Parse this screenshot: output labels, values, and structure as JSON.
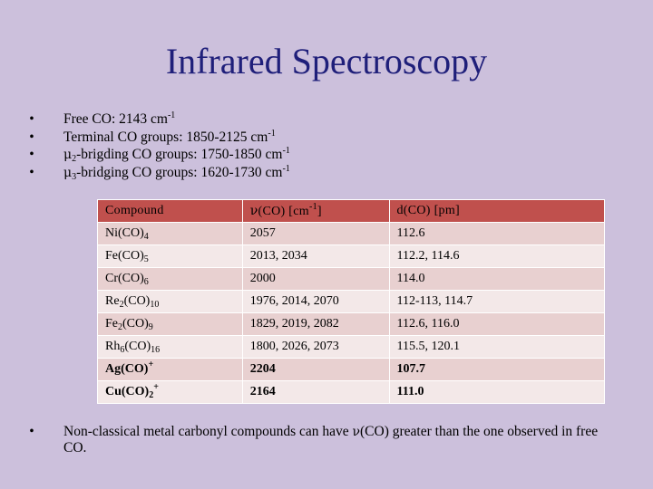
{
  "title": "Infrared Spectroscopy",
  "bullets": [
    {
      "pre": "",
      "greek": "",
      "sub": "",
      "text": "Free CO: 2143 cm",
      "sup": "-1"
    },
    {
      "pre": "",
      "greek": "",
      "sub": "",
      "text": "Terminal CO groups: 1850-2125 cm",
      "sup": "-1"
    },
    {
      "pre": "",
      "greek": "μ",
      "sub": "2",
      "text": "-brigding CO groups: 1750-1850 cm",
      "sup": "-1"
    },
    {
      "pre": "",
      "greek": "μ",
      "sub": "3",
      "text": "-bridging CO groups: 1620-1730 cm",
      "sup": "-1"
    }
  ],
  "table": {
    "headers": {
      "compound": "Compound",
      "nu_symbol": "ν",
      "nu_text": "(CO) [cm",
      "nu_sup": "-1",
      "nu_close": "]",
      "distance": "d(CO) [pm]"
    },
    "rows": [
      {
        "parts": [
          [
            "Ni(CO)",
            ""
          ],
          [
            "4",
            "sub"
          ]
        ],
        "nu": "2057",
        "d": "112.6",
        "bold": false
      },
      {
        "parts": [
          [
            "Fe(CO)",
            ""
          ],
          [
            "5",
            "sub"
          ]
        ],
        "nu": "2013, 2034",
        "d": "112.2, 114.6",
        "bold": false
      },
      {
        "parts": [
          [
            "Cr(CO)",
            ""
          ],
          [
            "6",
            "sub"
          ]
        ],
        "nu": "2000",
        "d": "114.0",
        "bold": false
      },
      {
        "parts": [
          [
            "Re",
            ""
          ],
          [
            "2",
            "sub"
          ],
          [
            "(CO)",
            ""
          ],
          [
            "10",
            "sub"
          ]
        ],
        "nu": "1976, 2014, 2070",
        "d": "112-113, 114.7",
        "bold": false
      },
      {
        "parts": [
          [
            "Fe",
            ""
          ],
          [
            "2",
            "sub"
          ],
          [
            "(CO)",
            ""
          ],
          [
            "9",
            "sub"
          ]
        ],
        "nu": "1829, 2019, 2082",
        "d": "112.6, 116.0",
        "bold": false
      },
      {
        "parts": [
          [
            "Rh",
            ""
          ],
          [
            "6",
            "sub"
          ],
          [
            "(CO)",
            ""
          ],
          [
            "16",
            "sub"
          ]
        ],
        "nu": "1800, 2026, 2073",
        "d": "115.5, 120.1",
        "bold": false
      },
      {
        "parts": [
          [
            "Ag(CO)",
            ""
          ],
          [
            "+",
            "sup"
          ]
        ],
        "nu": "2204",
        "d": "107.7",
        "bold": true
      },
      {
        "parts": [
          [
            "Cu(CO)",
            ""
          ],
          [
            "2",
            "sub"
          ],
          [
            "+",
            "sup"
          ]
        ],
        "nu": "2164",
        "d": "111.0",
        "bold": true
      }
    ]
  },
  "note": {
    "before": "Non-classical metal carbonyl compounds can have ",
    "greek": "ν",
    "after": "(CO) greater than the one observed in free CO."
  },
  "bullet_char": "•"
}
